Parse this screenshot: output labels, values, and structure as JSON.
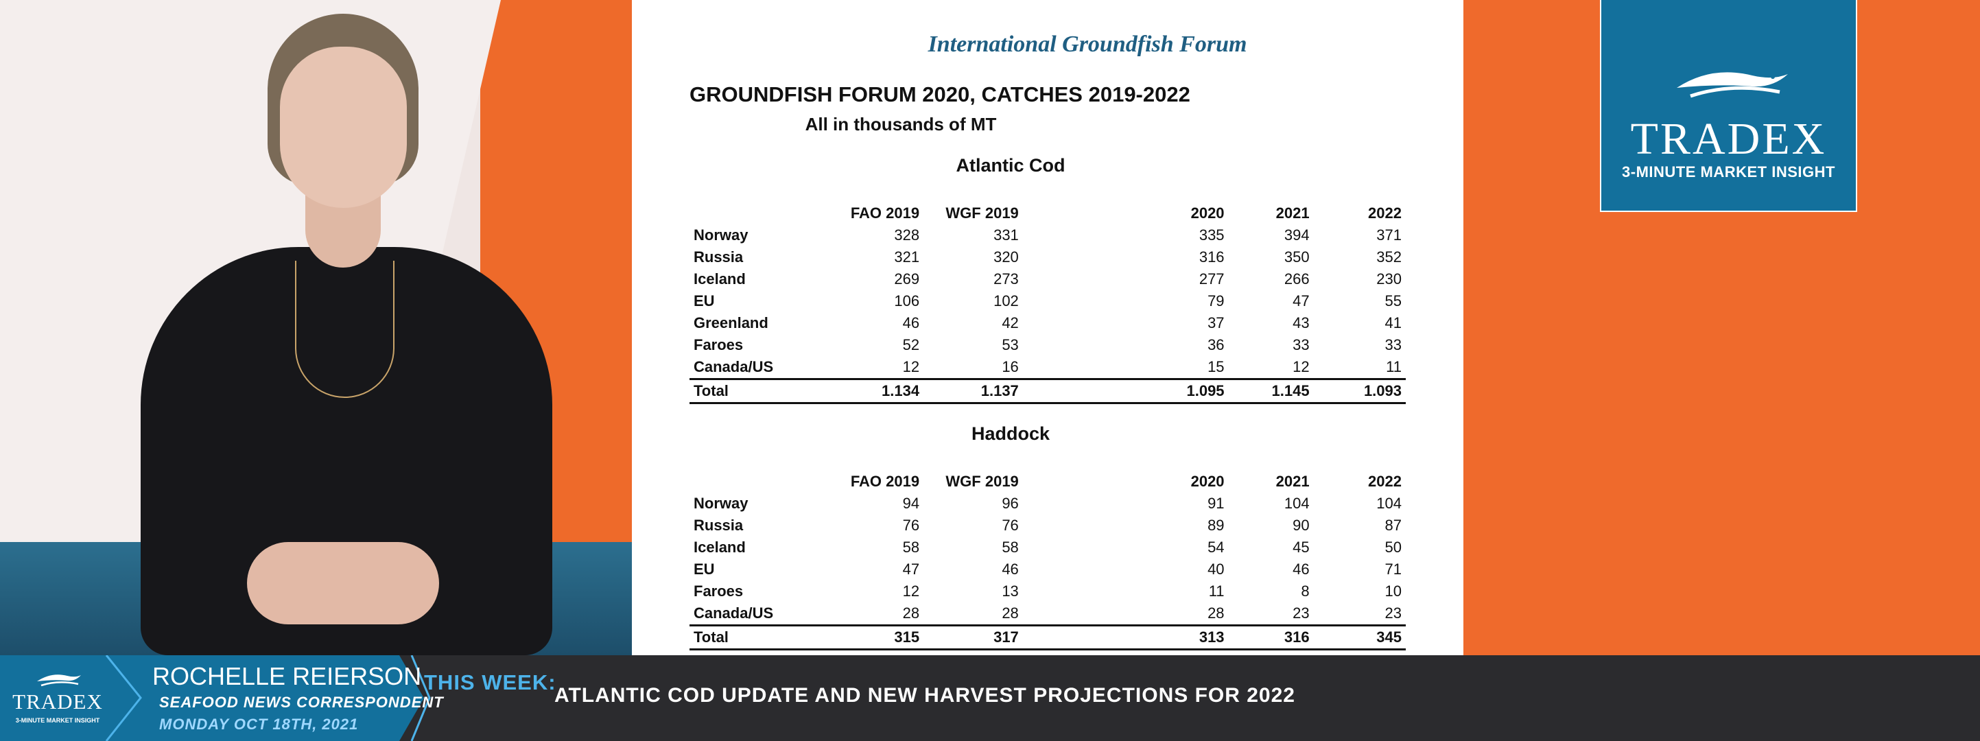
{
  "document": {
    "organization": "International Groundfish Forum",
    "title": "GROUNDFISH FORUM 2020, CATCHES 2019-2022",
    "subtitle": "All in thousands of MT",
    "columns": [
      "FAO 2019",
      "WGF 2019",
      "2020",
      "2021",
      "2022"
    ],
    "tables": [
      {
        "title": "Atlantic Cod",
        "rows": [
          {
            "country": "Norway",
            "values": [
              "328",
              "331",
              "335",
              "394",
              "371"
            ]
          },
          {
            "country": "Russia",
            "values": [
              "321",
              "320",
              "316",
              "350",
              "352"
            ]
          },
          {
            "country": "Iceland",
            "values": [
              "269",
              "273",
              "277",
              "266",
              "230"
            ]
          },
          {
            "country": "EU",
            "values": [
              "106",
              "102",
              "79",
              "47",
              "55"
            ]
          },
          {
            "country": "Greenland",
            "values": [
              "46",
              "42",
              "37",
              "43",
              "41"
            ]
          },
          {
            "country": "Faroes",
            "values": [
              "52",
              "53",
              "36",
              "33",
              "33"
            ]
          },
          {
            "country": "Canada/US",
            "values": [
              "12",
              "16",
              "15",
              "12",
              "11"
            ]
          }
        ],
        "total": {
          "label": "Total",
          "values": [
            "1.134",
            "1.137",
            "1.095",
            "1.145",
            "1.093"
          ]
        }
      },
      {
        "title": "Haddock",
        "rows": [
          {
            "country": "Norway",
            "values": [
              "94",
              "96",
              "91",
              "104",
              "104"
            ]
          },
          {
            "country": "Russia",
            "values": [
              "76",
              "76",
              "89",
              "90",
              "87"
            ]
          },
          {
            "country": "Iceland",
            "values": [
              "58",
              "58",
              "54",
              "45",
              "50"
            ]
          },
          {
            "country": "EU",
            "values": [
              "47",
              "46",
              "40",
              "46",
              "71"
            ]
          },
          {
            "country": "Faroes",
            "values": [
              "12",
              "13",
              "11",
              "8",
              "10"
            ]
          },
          {
            "country": "Canada/US",
            "values": [
              "28",
              "28",
              "28",
              "23",
              "23"
            ]
          }
        ],
        "total": {
          "label": "Total",
          "values": [
            "315",
            "317",
            "313",
            "316",
            "345"
          ]
        }
      }
    ]
  },
  "brand": {
    "wordmark": "TRADEX",
    "tagline": "3-MINUTE MARKET INSIGHT",
    "colors": {
      "blue": "#13709c",
      "orange": "#ef6a2c",
      "dark": "#2b2b2e",
      "accent": "#4db3ea"
    },
    "icon": "fish-logo-icon"
  },
  "lower_third": {
    "name": "ROCHELLE REIERSON",
    "role": "SEAFOOD NEWS CORRESPONDENT",
    "date": "MONDAY OCT 18TH, 2021",
    "this_week_label": "THIS WEEK:",
    "headline": "ATLANTIC COD UPDATE AND NEW HARVEST PROJECTIONS FOR 2022"
  }
}
